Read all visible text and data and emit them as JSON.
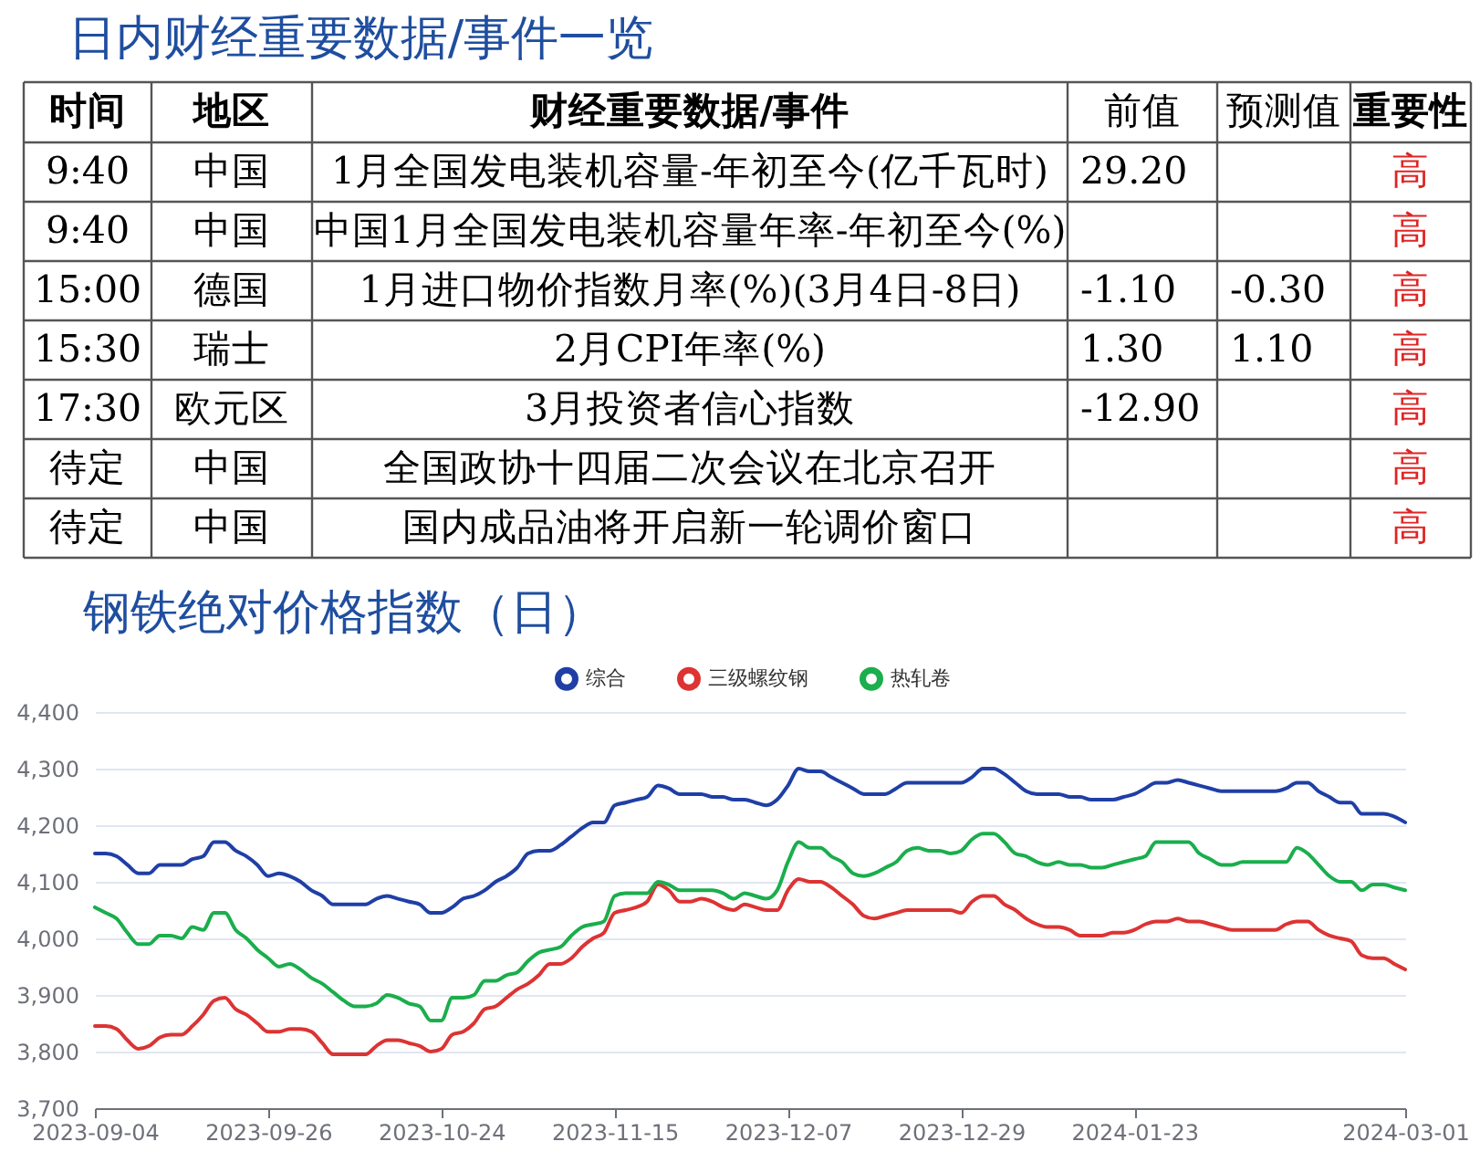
{
  "chart_data": [
    {
      "type": "other",
      "title": "日内财经重要数据/事件一览",
      "categories": [
        "时间",
        "地区",
        "财经重要数据/事件",
        "前值",
        "预测值",
        "重要性"
      ],
      "cell_labels": [
        [
          "9:40",
          "中国",
          "1月全国发电装机容量-年初至今(亿千瓦时)",
          "29.20",
          null,
          "高"
        ],
        [
          "9:40",
          "中国",
          "中国1月全国发电装机容量年率-年初至今(%)",
          null,
          null,
          "高"
        ],
        [
          "15:00",
          "德国",
          "1月进口物价指数月率(%)(3月4日-8日)",
          "-1.10",
          "-0.30",
          "高"
        ],
        [
          "15:30",
          "瑞士",
          "2月CPI年率(%)",
          "1.30",
          "1.10",
          "高"
        ],
        [
          "17:30",
          "欧元区",
          "3月投资者信心指数",
          "-12.90",
          null,
          "高"
        ],
        [
          "待定",
          "中国",
          "全国政协十四届二次会议在北京召开",
          null,
          null,
          "高"
        ],
        [
          "待定",
          "中国",
          "国内成品油将开启新一轮调价窗口",
          null,
          null,
          "高"
        ]
      ]
    },
    {
      "type": "line",
      "title": "钢铁绝对价格指数（日）",
      "categories": [
        "2023-09-04",
        null,
        null,
        null,
        null,
        null,
        null,
        null,
        null,
        null,
        null,
        null,
        null,
        null,
        null,
        null,
        "2023-09-26",
        null,
        null,
        null,
        null,
        null,
        null,
        null,
        null,
        null,
        null,
        null,
        null,
        null,
        null,
        null,
        "2023-10-24",
        null,
        null,
        null,
        null,
        null,
        null,
        null,
        null,
        null,
        null,
        null,
        null,
        null,
        null,
        null,
        "2023-11-15",
        null,
        null,
        null,
        null,
        null,
        null,
        null,
        null,
        null,
        null,
        null,
        null,
        null,
        null,
        null,
        "2023-12-07",
        null,
        null,
        null,
        null,
        null,
        null,
        null,
        null,
        null,
        null,
        null,
        null,
        null,
        null,
        null,
        "2023-12-29",
        null,
        null,
        null,
        null,
        null,
        null,
        null,
        null,
        null,
        null,
        null,
        null,
        null,
        null,
        null,
        "2024-01-23",
        null,
        null,
        null,
        null,
        null,
        null,
        null,
        null,
        null,
        null,
        null,
        null,
        null,
        null,
        null,
        null,
        null,
        null,
        null,
        null,
        null,
        null,
        null,
        null,
        "2024-03-01"
      ],
      "series": [
        {
          "name": "综合",
          "color": "#1f3fa6",
          "values": [
            4150,
            4150,
            4145,
            4130,
            4115,
            4115,
            4130,
            4130,
            4130,
            4140,
            4145,
            4170,
            4170,
            4155,
            4145,
            4130,
            4110,
            4115,
            4110,
            4100,
            4085,
            4075,
            4060,
            4060,
            4060,
            4060,
            4070,
            4075,
            4070,
            4065,
            4060,
            4045,
            4045,
            4055,
            4070,
            4075,
            4085,
            4100,
            4110,
            4125,
            4150,
            4155,
            4155,
            4165,
            4180,
            4195,
            4205,
            4205,
            4235,
            4240,
            4245,
            4250,
            4270,
            4265,
            4255,
            4255,
            4255,
            4250,
            4250,
            4245,
            4245,
            4240,
            4235,
            4245,
            4270,
            4300,
            4295,
            4295,
            4285,
            4275,
            4265,
            4255,
            4255,
            4255,
            4265,
            4275,
            4275,
            4275,
            4275,
            4275,
            4275,
            4285,
            4300,
            4300,
            4290,
            4275,
            4260,
            4255,
            4255,
            4255,
            4250,
            4250,
            4245,
            4245,
            4245,
            4250,
            4255,
            4265,
            4275,
            4275,
            4280,
            4275,
            4270,
            4265,
            4260,
            4260,
            4260,
            4260,
            4260,
            4260,
            4265,
            4275,
            4275,
            4260,
            4250,
            4240,
            4240,
            4220,
            4220,
            4220,
            4215,
            4205
          ]
        },
        {
          "name": "三级螺纹钢",
          "color": "#dd3333",
          "values": [
            3845,
            3845,
            3840,
            3820,
            3805,
            3810,
            3825,
            3830,
            3830,
            3845,
            3865,
            3890,
            3895,
            3875,
            3865,
            3850,
            3835,
            3835,
            3840,
            3840,
            3835,
            3815,
            3795,
            3795,
            3795,
            3795,
            3810,
            3820,
            3820,
            3815,
            3810,
            3800,
            3805,
            3830,
            3835,
            3850,
            3875,
            3880,
            3895,
            3910,
            3920,
            3935,
            3955,
            3955,
            3965,
            3985,
            4000,
            4010,
            4045,
            4050,
            4055,
            4065,
            4095,
            4085,
            4065,
            4065,
            4070,
            4065,
            4055,
            4050,
            4060,
            4055,
            4050,
            4050,
            4085,
            4105,
            4100,
            4100,
            4090,
            4075,
            4060,
            4040,
            4035,
            4040,
            4045,
            4050,
            4050,
            4050,
            4050,
            4050,
            4045,
            4065,
            4075,
            4075,
            4060,
            4050,
            4035,
            4025,
            4020,
            4020,
            4015,
            4005,
            4005,
            4005,
            4010,
            4010,
            4015,
            4025,
            4030,
            4030,
            4035,
            4030,
            4030,
            4025,
            4020,
            4015,
            4015,
            4015,
            4015,
            4015,
            4025,
            4030,
            4030,
            4015,
            4005,
            4000,
            3995,
            3970,
            3965,
            3965,
            3955,
            3945
          ]
        },
        {
          "name": "热轧卷",
          "color": "#1aae4c",
          "values": [
            4055,
            4045,
            4035,
            4010,
            3990,
            3990,
            4005,
            4005,
            4000,
            4020,
            4015,
            4045,
            4045,
            4015,
            4000,
            3980,
            3965,
            3950,
            3955,
            3945,
            3930,
            3920,
            3905,
            3890,
            3880,
            3880,
            3885,
            3900,
            3895,
            3885,
            3880,
            3855,
            3855,
            3895,
            3895,
            3900,
            3925,
            3925,
            3935,
            3940,
            3960,
            3975,
            3980,
            3985,
            4005,
            4020,
            4025,
            4030,
            4075,
            4080,
            4080,
            4080,
            4100,
            4095,
            4085,
            4085,
            4085,
            4085,
            4080,
            4070,
            4080,
            4075,
            4070,
            4085,
            4135,
            4170,
            4160,
            4160,
            4145,
            4135,
            4115,
            4110,
            4115,
            4125,
            4135,
            4155,
            4160,
            4155,
            4155,
            4150,
            4155,
            4175,
            4185,
            4185,
            4170,
            4150,
            4145,
            4135,
            4130,
            4135,
            4130,
            4130,
            4125,
            4125,
            4130,
            4135,
            4140,
            4145,
            4170,
            4170,
            4170,
            4170,
            4150,
            4140,
            4130,
            4130,
            4135,
            4135,
            4135,
            4135,
            4135,
            4160,
            4150,
            4130,
            4110,
            4100,
            4100,
            4085,
            4095,
            4095,
            4090,
            4085
          ]
        }
      ],
      "ylim": [
        3700,
        4400
      ],
      "yticks": [
        {
          "value": 3700,
          "label": "3,700"
        },
        {
          "value": 3800,
          "label": "3,800"
        },
        {
          "value": 3900,
          "label": "3,900"
        },
        {
          "value": 4000,
          "label": "4,000"
        },
        {
          "value": 4100,
          "label": "4,100"
        },
        {
          "value": 4200,
          "label": "4,200"
        },
        {
          "value": 4300,
          "label": "4,300"
        },
        {
          "value": 4400,
          "label": "4,400"
        }
      ],
      "grid": "y",
      "legend": "top"
    }
  ]
}
